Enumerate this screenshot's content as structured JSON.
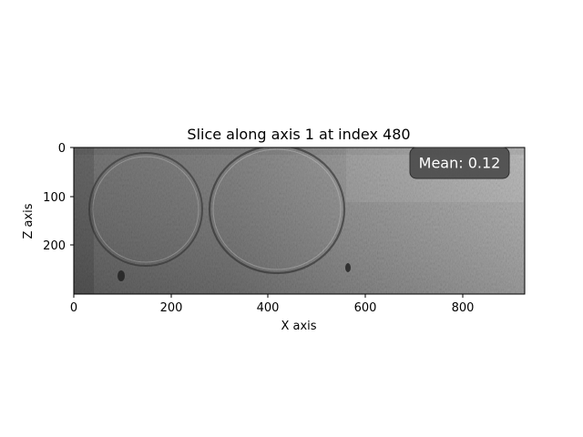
{
  "figure": {
    "title": "Slice along axis 1 at index 480",
    "xlabel": "X axis",
    "ylabel": "Z axis",
    "annotation": "Mean: 0.12"
  },
  "axes": {
    "x_ticks": [
      "0",
      "200",
      "400",
      "600",
      "800"
    ],
    "y_ticks": [
      "0",
      "100",
      "200"
    ]
  },
  "image": {
    "colormap": "gray",
    "extent_x": [
      0,
      925
    ],
    "extent_z": [
      0,
      300
    ]
  },
  "colors": {
    "annotation_box": "#4a4a4a",
    "annotation_text": "#ffffff"
  }
}
